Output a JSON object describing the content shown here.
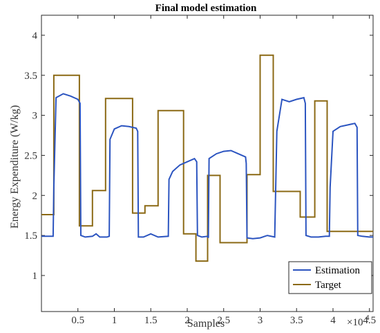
{
  "chart_data": {
    "type": "line",
    "title": "Final model estimation",
    "xlabel": "Samples",
    "ylabel": "Energy Expenditure (W/kg)",
    "x_exponent_base": "×10",
    "x_exponent_power": "4",
    "xlim": [
      0,
      4.55
    ],
    "ylim": [
      0.55,
      4.25
    ],
    "x_ticks": [
      0.5,
      1,
      1.5,
      2,
      2.5,
      3,
      3.5,
      4,
      4.5
    ],
    "x_tick_labels": [
      "0.5",
      "1",
      "1.5",
      "2",
      "2.5",
      "3",
      "3.5",
      "4",
      "4.5"
    ],
    "y_ticks": [
      1,
      1.5,
      2,
      2.5,
      3,
      3.5,
      4
    ],
    "y_tick_labels": [
      "1",
      "1.5",
      "2",
      "2.5",
      "3",
      "3.5",
      "4"
    ],
    "grid": false,
    "legend_position": "bottom-right",
    "series": [
      {
        "name": "Estimation",
        "color": "#2b54c0",
        "x": [
          0,
          0.16,
          0.17,
          0.2,
          0.3,
          0.4,
          0.5,
          0.53,
          0.54,
          0.6,
          0.7,
          0.75,
          0.8,
          0.9,
          0.93,
          0.94,
          1.0,
          1.1,
          1.2,
          1.3,
          1.32,
          1.33,
          1.4,
          1.5,
          1.6,
          1.74,
          1.75,
          1.8,
          1.9,
          2.0,
          2.1,
          2.13,
          2.14,
          2.2,
          2.28,
          2.29,
          2.3,
          2.4,
          2.5,
          2.6,
          2.7,
          2.8,
          2.81,
          2.82,
          2.9,
          3.0,
          3.1,
          3.2,
          3.23,
          3.3,
          3.4,
          3.5,
          3.6,
          3.62,
          3.63,
          3.7,
          3.8,
          3.9,
          3.95,
          3.96,
          4.0,
          4.1,
          4.2,
          4.3,
          4.33,
          4.34,
          4.4,
          4.5,
          4.55
        ],
        "y": [
          1.49,
          1.49,
          2.1,
          3.22,
          3.27,
          3.24,
          3.2,
          3.15,
          1.5,
          1.48,
          1.49,
          1.52,
          1.48,
          1.48,
          1.49,
          2.7,
          2.83,
          2.87,
          2.86,
          2.84,
          2.8,
          1.48,
          1.48,
          1.52,
          1.48,
          1.49,
          2.2,
          2.3,
          2.38,
          2.42,
          2.46,
          2.42,
          1.5,
          1.48,
          1.49,
          1.47,
          2.46,
          2.52,
          2.55,
          2.56,
          2.52,
          2.48,
          2.4,
          1.47,
          1.46,
          1.47,
          1.5,
          1.48,
          2.8,
          3.2,
          3.17,
          3.2,
          3.22,
          3.15,
          1.5,
          1.48,
          1.48,
          1.49,
          1.49,
          2.1,
          2.8,
          2.86,
          2.88,
          2.9,
          2.85,
          1.5,
          1.49,
          1.48,
          1.48
        ]
      },
      {
        "name": "Target",
        "color": "#8b6914",
        "x": [
          0,
          0.17,
          0.17,
          0.52,
          0.52,
          0.7,
          0.7,
          0.88,
          0.88,
          1.25,
          1.25,
          1.42,
          1.42,
          1.6,
          1.6,
          1.95,
          1.95,
          2.12,
          2.12,
          2.28,
          2.28,
          2.45,
          2.45,
          2.82,
          2.82,
          3.0,
          3.0,
          3.18,
          3.18,
          3.55,
          3.55,
          3.75,
          3.75,
          3.92,
          3.92,
          4.32,
          4.32,
          4.55
        ],
        "y": [
          1.76,
          1.76,
          3.5,
          3.5,
          1.62,
          1.62,
          2.06,
          2.06,
          3.21,
          3.21,
          1.78,
          1.78,
          1.87,
          1.87,
          3.06,
          3.06,
          1.52,
          1.52,
          1.18,
          1.18,
          2.25,
          2.25,
          1.41,
          1.41,
          2.26,
          2.26,
          3.75,
          3.75,
          2.05,
          2.05,
          1.73,
          1.73,
          3.18,
          3.18,
          1.55,
          1.55,
          1.55,
          1.55
        ]
      }
    ]
  }
}
